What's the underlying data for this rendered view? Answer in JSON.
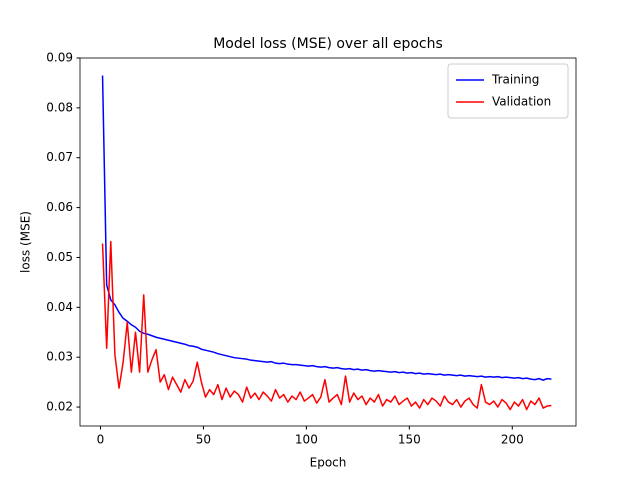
{
  "chart_data": {
    "type": "line",
    "title": "Model loss (MSE) over all epochs",
    "xlabel": "Epoch",
    "ylabel": "loss (MSE)",
    "x": [
      1,
      3,
      5,
      7,
      9,
      11,
      13,
      15,
      17,
      19,
      21,
      23,
      25,
      27,
      29,
      31,
      33,
      35,
      37,
      39,
      41,
      43,
      45,
      47,
      49,
      51,
      53,
      55,
      57,
      59,
      61,
      63,
      65,
      67,
      69,
      71,
      73,
      75,
      77,
      79,
      81,
      83,
      85,
      87,
      89,
      91,
      93,
      95,
      97,
      99,
      101,
      103,
      105,
      107,
      109,
      111,
      113,
      115,
      117,
      119,
      121,
      123,
      125,
      127,
      129,
      131,
      133,
      135,
      137,
      139,
      141,
      143,
      145,
      147,
      149,
      151,
      153,
      155,
      157,
      159,
      161,
      163,
      165,
      167,
      169,
      171,
      173,
      175,
      177,
      179,
      181,
      183,
      185,
      187,
      189,
      191,
      193,
      195,
      197,
      199,
      201,
      203,
      205,
      207,
      209,
      211,
      213,
      215,
      217,
      219
    ],
    "series": [
      {
        "name": "Training",
        "color": "#0000ff",
        "values": [
          0.0865,
          0.0445,
          0.0415,
          0.0405,
          0.039,
          0.0378,
          0.0372,
          0.0365,
          0.036,
          0.0352,
          0.0348,
          0.0346,
          0.0343,
          0.034,
          0.0338,
          0.0336,
          0.0334,
          0.0332,
          0.033,
          0.0328,
          0.0326,
          0.0323,
          0.0322,
          0.032,
          0.0316,
          0.0314,
          0.0312,
          0.031,
          0.0307,
          0.0305,
          0.0303,
          0.0301,
          0.0299,
          0.0298,
          0.0297,
          0.0296,
          0.0294,
          0.0293,
          0.0292,
          0.0291,
          0.029,
          0.0291,
          0.0288,
          0.0287,
          0.0288,
          0.0286,
          0.0285,
          0.0285,
          0.0284,
          0.0283,
          0.0282,
          0.0283,
          0.0281,
          0.028,
          0.0281,
          0.0279,
          0.0278,
          0.0279,
          0.0277,
          0.0276,
          0.0277,
          0.0275,
          0.0276,
          0.0274,
          0.0275,
          0.0273,
          0.0272,
          0.0273,
          0.0272,
          0.0271,
          0.027,
          0.0271,
          0.0269,
          0.027,
          0.0268,
          0.0269,
          0.0267,
          0.0268,
          0.0266,
          0.0267,
          0.0266,
          0.0265,
          0.0266,
          0.0264,
          0.0265,
          0.0264,
          0.0263,
          0.0264,
          0.0262,
          0.0263,
          0.0262,
          0.0261,
          0.0262,
          0.026,
          0.0261,
          0.026,
          0.0261,
          0.0259,
          0.026,
          0.0259,
          0.0258,
          0.0259,
          0.0257,
          0.0258,
          0.0256,
          0.0255,
          0.0257,
          0.0254,
          0.0257,
          0.0256
        ]
      },
      {
        "name": "Validation",
        "color": "#ff0000",
        "values": [
          0.0528,
          0.0318,
          0.0532,
          0.0305,
          0.0238,
          0.029,
          0.037,
          0.027,
          0.035,
          0.027,
          0.0425,
          0.027,
          0.0295,
          0.0315,
          0.025,
          0.0265,
          0.0235,
          0.026,
          0.0245,
          0.023,
          0.0255,
          0.0238,
          0.0252,
          0.029,
          0.025,
          0.022,
          0.0235,
          0.0225,
          0.0245,
          0.0215,
          0.0238,
          0.022,
          0.0232,
          0.0225,
          0.021,
          0.024,
          0.0218,
          0.0228,
          0.0215,
          0.023,
          0.0222,
          0.0212,
          0.0235,
          0.0218,
          0.0225,
          0.021,
          0.0222,
          0.0215,
          0.023,
          0.0212,
          0.0218,
          0.0225,
          0.0208,
          0.022,
          0.0255,
          0.021,
          0.0218,
          0.0225,
          0.0205,
          0.0262,
          0.021,
          0.0228,
          0.0215,
          0.0222,
          0.0205,
          0.0218,
          0.021,
          0.0225,
          0.0202,
          0.0215,
          0.021,
          0.0222,
          0.0205,
          0.0212,
          0.0218,
          0.0202,
          0.021,
          0.0198,
          0.0215,
          0.0205,
          0.0218,
          0.0212,
          0.0202,
          0.0222,
          0.021,
          0.0205,
          0.0215,
          0.02,
          0.0212,
          0.0218,
          0.0205,
          0.0198,
          0.0245,
          0.021,
          0.0205,
          0.0212,
          0.02,
          0.0215,
          0.0208,
          0.0195,
          0.021,
          0.0202,
          0.0215,
          0.0195,
          0.0212,
          0.0205,
          0.0218,
          0.0198,
          0.0202,
          0.0203
        ]
      }
    ],
    "xlim": [
      -9.95,
      230.95
    ],
    "ylim": [
      0.0162,
      0.09
    ],
    "xticks": [
      0,
      50,
      100,
      150,
      200
    ],
    "yticks": [
      0.02,
      0.03,
      0.04,
      0.05,
      0.06,
      0.07,
      0.08,
      0.09
    ],
    "legend": "upper right",
    "grid": false
  }
}
